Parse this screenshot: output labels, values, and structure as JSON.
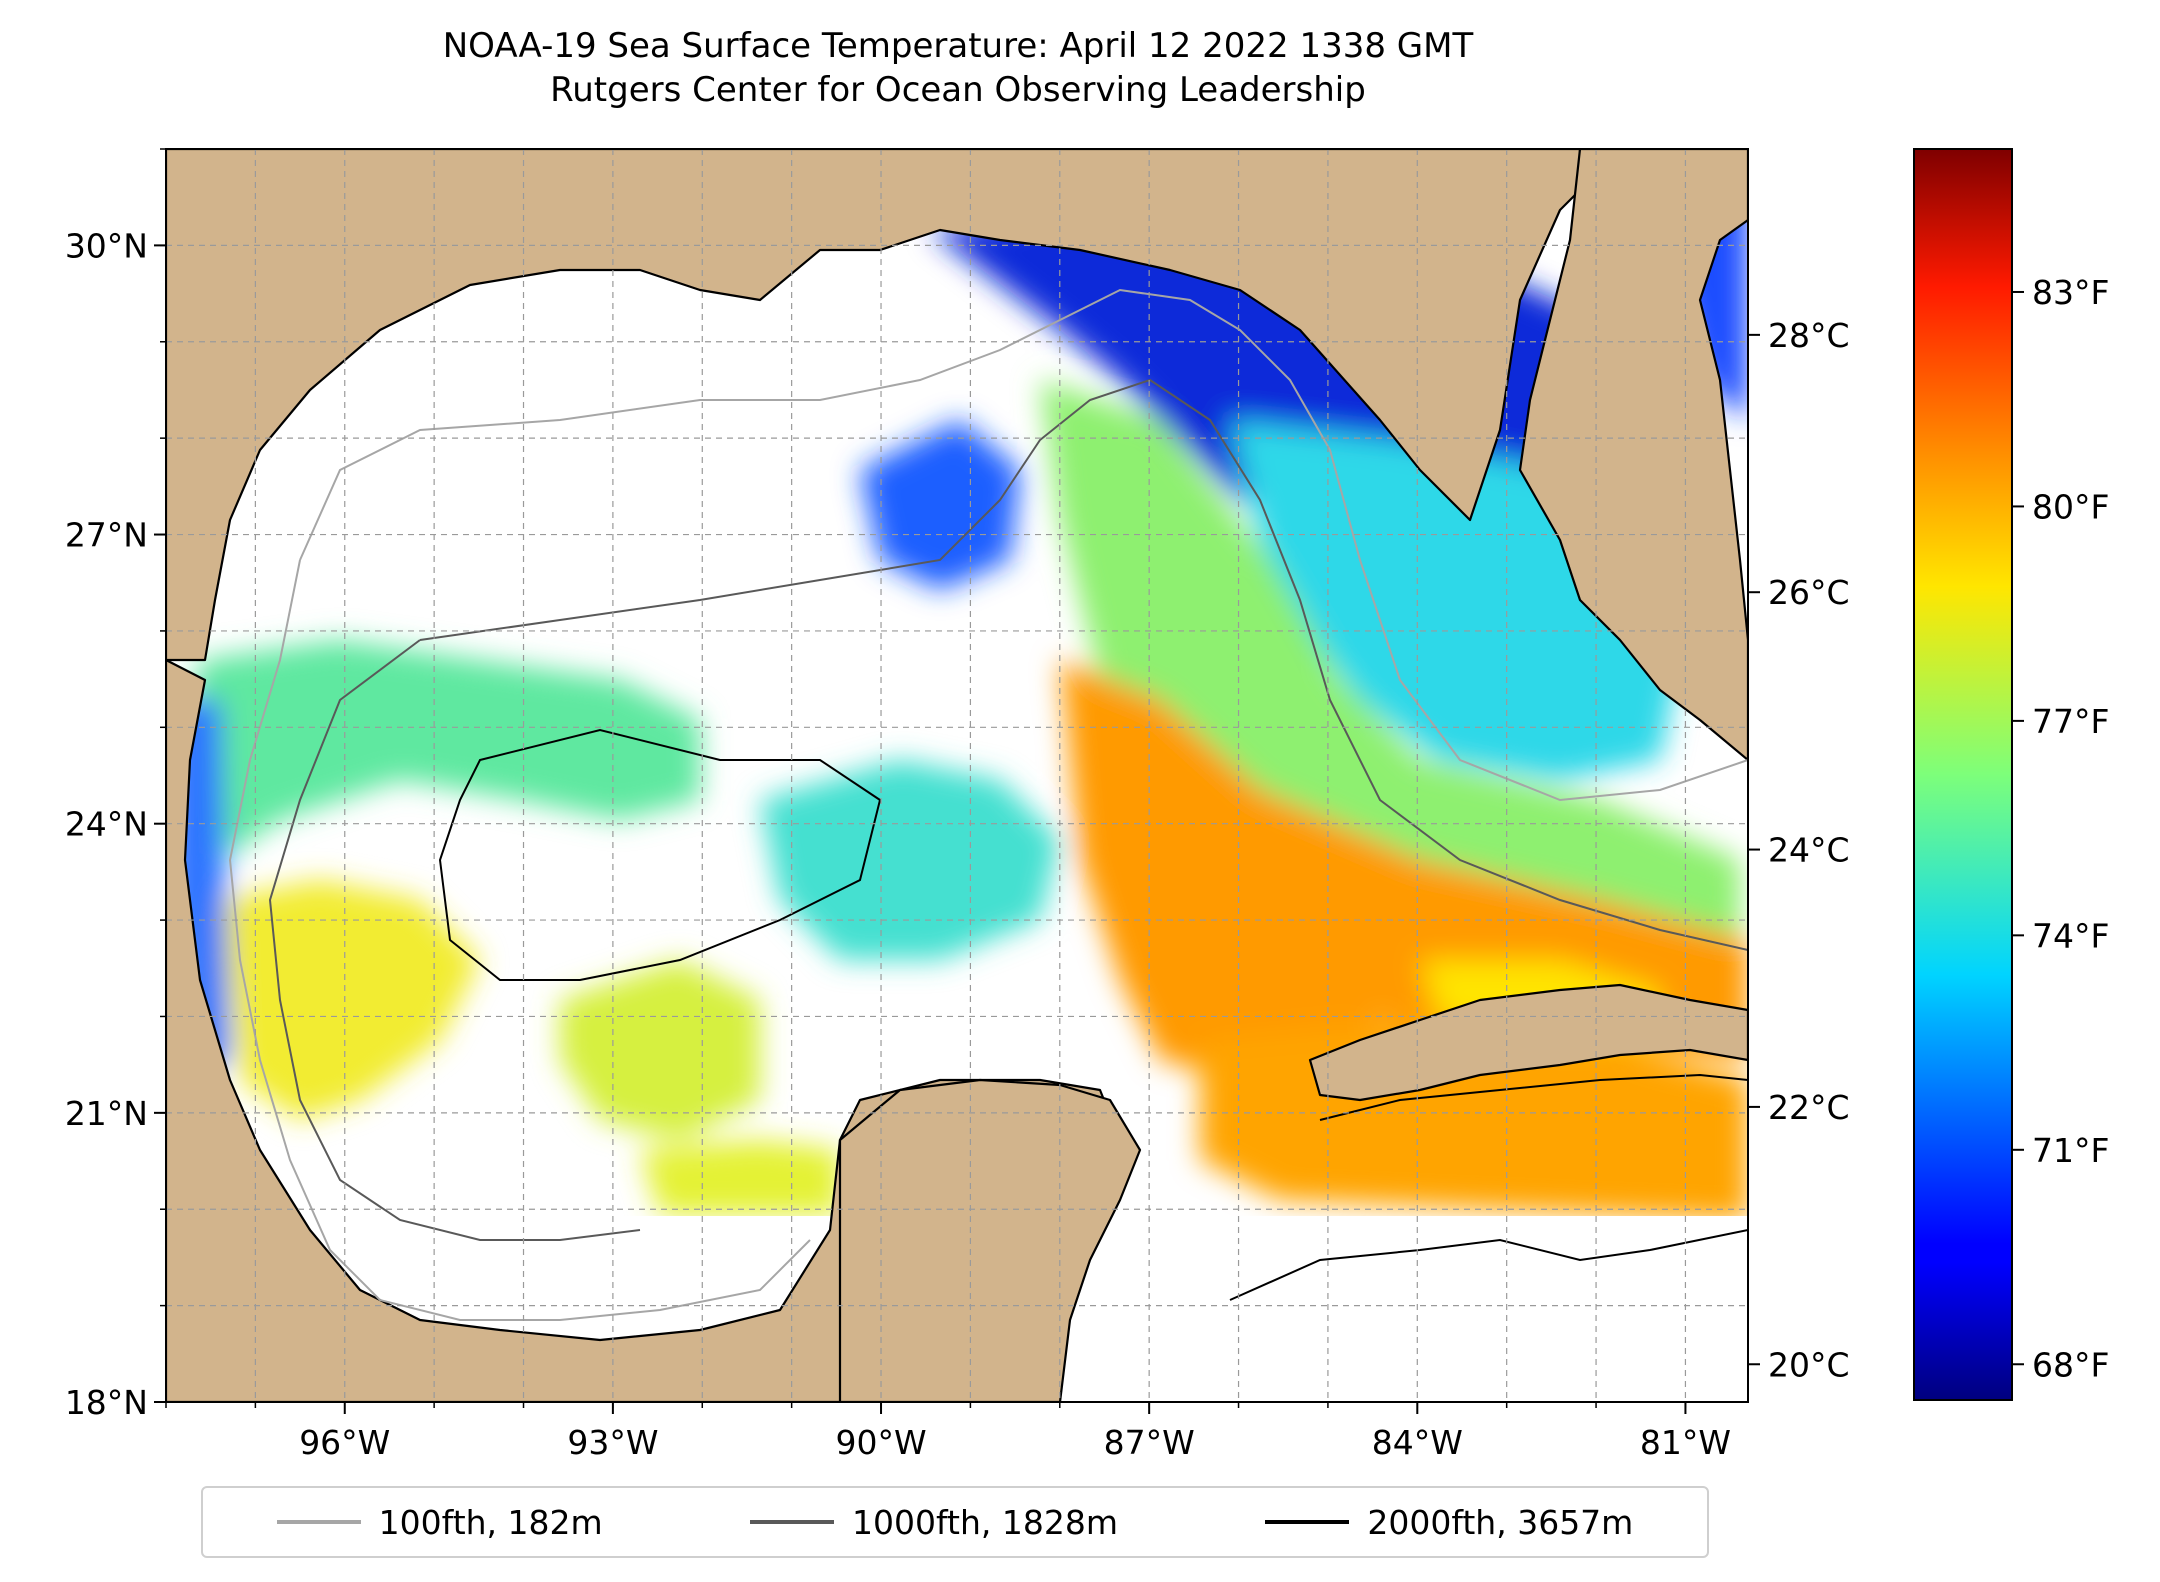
{
  "title": {
    "line1": "NOAA-19 Sea Surface Temperature: April 12 2022 1338 GMT",
    "line2": "Rutgers Center for Ocean Observing Leadership"
  },
  "map": {
    "lon_range": [
      -98.0,
      -80.3
    ],
    "lat_range": [
      18.0,
      31.0
    ],
    "lon_ticks": [
      "96°W",
      "93°W",
      "90°W",
      "87°W",
      "84°W",
      "81°W"
    ],
    "lat_ticks": [
      "18°N",
      "21°N",
      "24°N",
      "27°N",
      "30°N"
    ],
    "land_color": "#d2b48c",
    "missing_data_color": "#ffffff",
    "gridlines": true
  },
  "colorbar": {
    "colormap": "jet",
    "range_f": [
      67.5,
      85.0
    ],
    "celsius_ticks": [
      "20°C",
      "22°C",
      "24°C",
      "26°C",
      "28°C"
    ],
    "fahrenheit_ticks": [
      "68°F",
      "71°F",
      "74°F",
      "77°F",
      "80°F",
      "83°F"
    ]
  },
  "legend": {
    "placement": "bottom-center",
    "items": [
      {
        "label": "100fth, 182m",
        "color": "#a6a6a6"
      },
      {
        "label": "1000fth, 1828m",
        "color": "#595959"
      },
      {
        "label": "2000fth, 3657m",
        "color": "#000000"
      }
    ]
  }
}
